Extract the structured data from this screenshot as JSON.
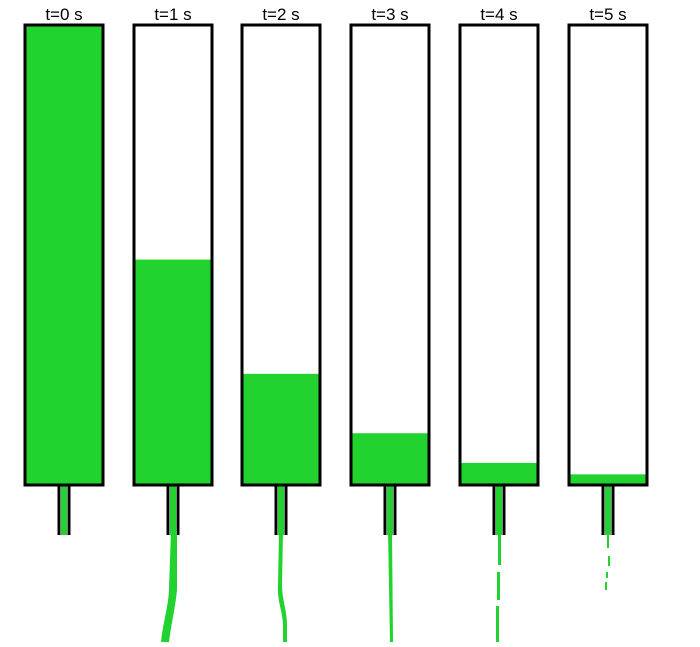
{
  "colors": {
    "liquid": "#22d22e",
    "outline": "#000000",
    "background": "#ffffff"
  },
  "tanks": [
    {
      "label": "t=0 s",
      "fill_fraction": 1.0,
      "stream": "none"
    },
    {
      "label": "t=1 s",
      "fill_fraction": 0.49,
      "stream": "thick"
    },
    {
      "label": "t=2 s",
      "fill_fraction": 0.24,
      "stream": "medium"
    },
    {
      "label": "t=3 s",
      "fill_fraction": 0.11,
      "stream": "thin"
    },
    {
      "label": "t=4 s",
      "fill_fraction": 0.045,
      "stream": "thin-broken"
    },
    {
      "label": "t=5 s",
      "fill_fraction": 0.02,
      "stream": "drips"
    }
  ]
}
